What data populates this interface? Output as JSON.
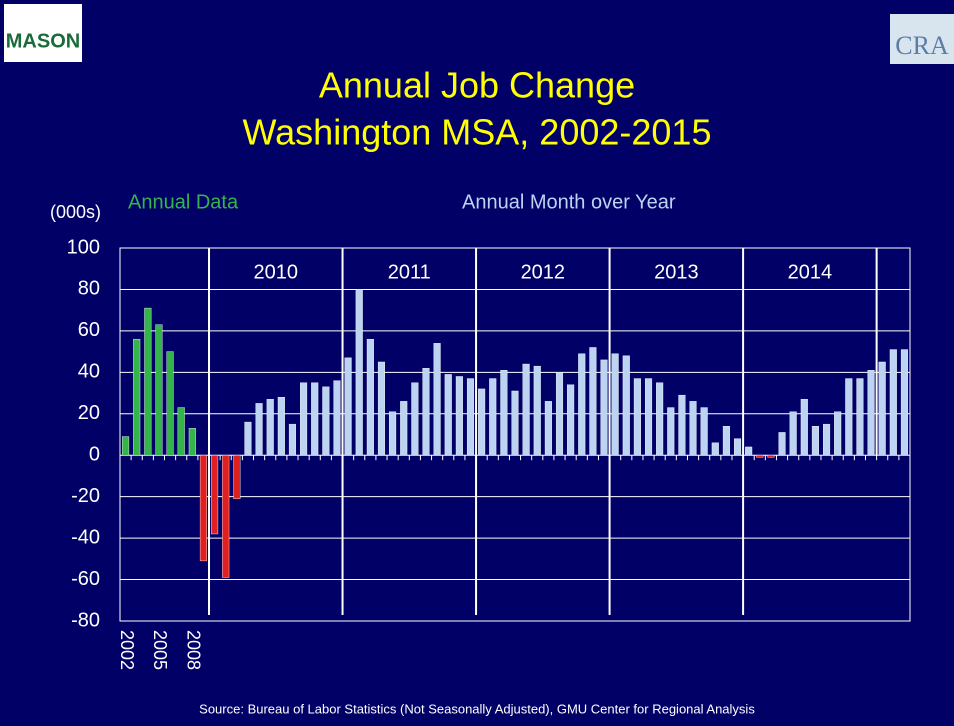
{
  "logos": {
    "left": "MASON",
    "right": "CRA"
  },
  "chart_data": {
    "type": "bar",
    "title": [
      "Annual Job Change",
      "Washington MSA, 2002-2015"
    ],
    "y_label": "(000s)",
    "source": "Source: Bureau of Labor Statistics (Not Seasonally Adjusted), GMU Center for Regional Analysis",
    "categories": [
      "2002",
      null,
      null,
      "2005",
      null,
      null,
      "2008",
      null,
      null,
      null,
      null,
      null,
      null,
      null,
      null,
      null,
      null,
      null,
      null,
      null,
      null,
      null,
      null,
      null,
      null,
      null,
      null,
      null,
      null,
      null,
      null,
      null,
      null,
      null,
      null,
      null,
      null,
      null,
      null,
      null,
      null,
      null,
      null,
      null,
      null,
      null,
      null,
      null,
      null,
      null,
      null,
      null,
      null,
      null,
      null,
      null,
      null,
      null,
      null,
      null,
      null,
      null,
      null,
      null,
      null,
      null,
      null,
      null,
      null,
      null,
      null
    ],
    "series": [
      {
        "name": "Annual Data",
        "color": "#33b54a",
        "values": [
          9,
          56,
          71,
          63,
          50,
          23,
          13,
          -51,
          null,
          null,
          null,
          null,
          null,
          null,
          null,
          null,
          null,
          null,
          null,
          null,
          null,
          null,
          null,
          null,
          null,
          null,
          null,
          null,
          null,
          null,
          null,
          null,
          null,
          null,
          null,
          null,
          null,
          null,
          null,
          null,
          null,
          null,
          null,
          null,
          null,
          null,
          null,
          null,
          null,
          null,
          null,
          null,
          null,
          null,
          null,
          null,
          null,
          null,
          null,
          null,
          null,
          null,
          null,
          null,
          null,
          null,
          null,
          null,
          null,
          null,
          null
        ]
      },
      {
        "name": "Annual Month over Year",
        "color": "#bcd4f2",
        "values": [
          null,
          null,
          null,
          null,
          null,
          null,
          null,
          null,
          -38,
          -59,
          -21,
          16,
          25,
          27,
          28,
          15,
          35,
          35,
          33,
          36,
          47,
          80,
          56,
          45,
          21,
          26,
          35,
          42,
          54,
          39,
          38,
          37,
          32,
          37,
          41,
          31,
          44,
          43,
          26,
          40,
          34,
          49,
          52,
          46,
          49,
          48,
          37,
          37,
          35,
          23,
          29,
          26,
          23,
          6,
          14,
          8,
          4,
          -1,
          -1,
          11,
          21,
          27,
          14,
          15,
          21,
          37,
          37,
          41,
          45,
          51,
          51
        ]
      }
    ],
    "negative_color": "#e02020",
    "period_labels": [
      "2010",
      "2011",
      "2012",
      "2013",
      "2014"
    ],
    "ylim": [
      -80,
      100
    ],
    "yticks": [
      -80,
      -60,
      -40,
      -20,
      0,
      20,
      40,
      60,
      80,
      100
    ]
  }
}
